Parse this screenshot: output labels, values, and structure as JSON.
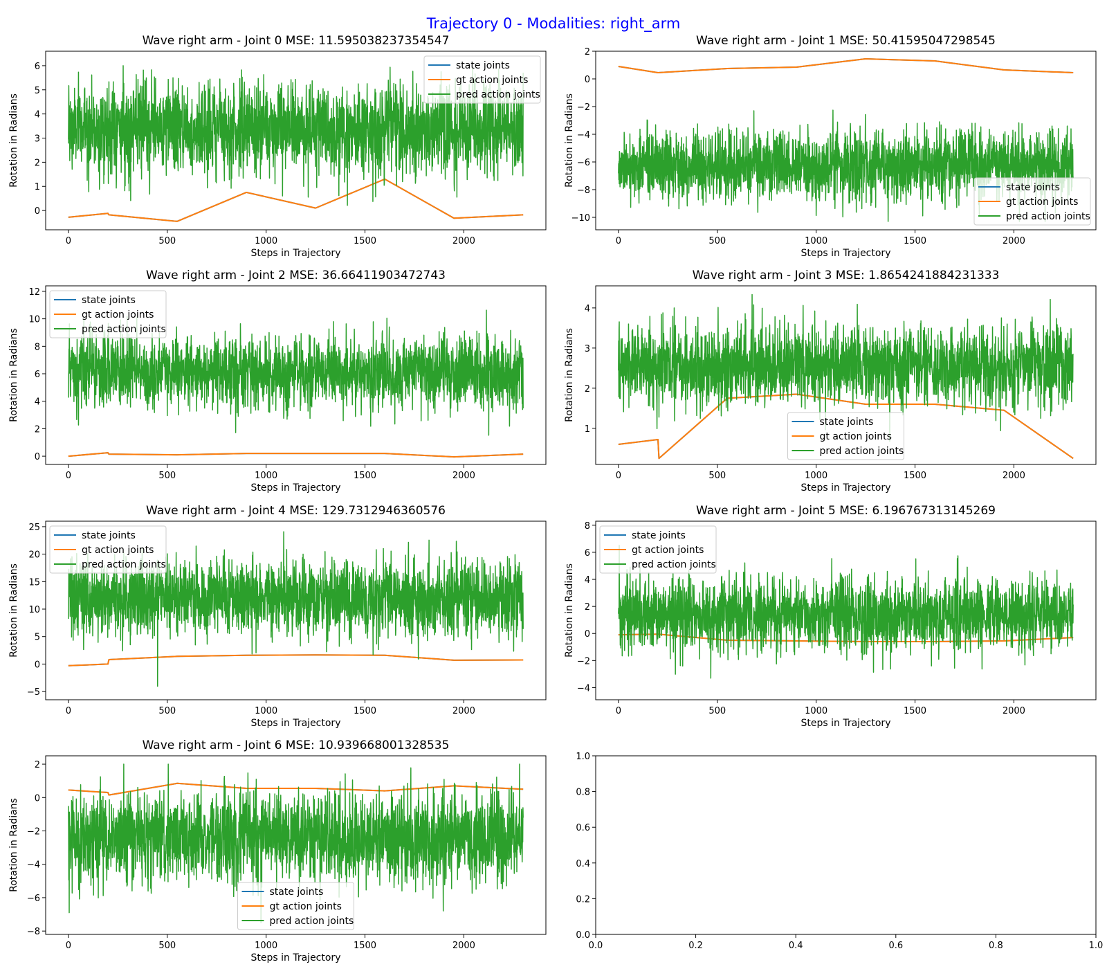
{
  "figure": {
    "suptitle": "Trajectory 0 - Modalities: right_arm",
    "series_names": [
      "state joints",
      "gt action joints",
      "pred action joints"
    ],
    "series_colors": [
      "#1f77b4",
      "#ff7f0e",
      "#2ca02c"
    ],
    "xlabel": "Steps in Trajectory",
    "ylabel": "Rotation in Radians"
  },
  "chart_data": [
    {
      "type": "line",
      "title": "Wave right arm - Joint 0 MSE: 11.595038237354547",
      "xlabel": "Steps in Trajectory",
      "ylabel": "Rotation in Radians",
      "xlim": [
        -115,
        2415
      ],
      "ylim": [
        -0.8,
        6.6
      ],
      "xticks": [
        0,
        500,
        1000,
        1500,
        2000
      ],
      "yticks": [
        0,
        1,
        2,
        3,
        4,
        5,
        6
      ],
      "legend": "upper right",
      "series": [
        {
          "name": "state joints",
          "points": [
            [
              0,
              -0.28
            ],
            [
              200,
              -0.12
            ],
            [
              205,
              -0.18
            ],
            [
              550,
              -0.45
            ],
            [
              900,
              0.75
            ],
            [
              1250,
              0.1
            ],
            [
              1600,
              1.3
            ],
            [
              1950,
              -0.32
            ],
            [
              2300,
              -0.18
            ]
          ]
        },
        {
          "name": "gt action joints",
          "points": [
            [
              0,
              -0.28
            ],
            [
              200,
              -0.12
            ],
            [
              205,
              -0.18
            ],
            [
              550,
              -0.45
            ],
            [
              900,
              0.75
            ],
            [
              1250,
              0.1
            ],
            [
              1600,
              1.3
            ],
            [
              1950,
              -0.32
            ],
            [
              2300,
              -0.18
            ]
          ]
        },
        {
          "name": "pred action joints",
          "noise": {
            "mean": 3.4,
            "sd": 0.95,
            "min": -0.05,
            "max": 6.3,
            "n": 2300
          }
        }
      ]
    },
    {
      "type": "line",
      "title": "Wave right arm - Joint 1 MSE: 50.41595047298545",
      "xlabel": "Steps in Trajectory",
      "ylabel": "Rotation in Radians",
      "xlim": [
        -115,
        2415
      ],
      "ylim": [
        -10.9,
        2.0
      ],
      "xticks": [
        0,
        500,
        1000,
        1500,
        2000
      ],
      "yticks": [
        -10,
        -8,
        -6,
        -4,
        -2,
        0,
        2
      ],
      "legend": "lower right",
      "series": [
        {
          "name": "state joints",
          "points": [
            [
              0,
              0.9
            ],
            [
              200,
              0.45
            ],
            [
              550,
              0.75
            ],
            [
              900,
              0.85
            ],
            [
              1250,
              1.45
            ],
            [
              1600,
              1.3
            ],
            [
              1950,
              0.65
            ],
            [
              2300,
              0.45
            ]
          ]
        },
        {
          "name": "gt action joints",
          "points": [
            [
              0,
              0.9
            ],
            [
              200,
              0.45
            ],
            [
              550,
              0.75
            ],
            [
              900,
              0.85
            ],
            [
              1250,
              1.45
            ],
            [
              1600,
              1.3
            ],
            [
              1950,
              0.65
            ],
            [
              2300,
              0.45
            ]
          ]
        },
        {
          "name": "pred action joints",
          "noise": {
            "mean": -6.3,
            "sd": 1.25,
            "min": -10.3,
            "max": -1.4,
            "n": 2300
          }
        }
      ]
    },
    {
      "type": "line",
      "title": "Wave right arm - Joint 2 MSE: 36.66411903472743",
      "xlabel": "Steps in Trajectory",
      "ylabel": "Rotation in Radians",
      "xlim": [
        -115,
        2415
      ],
      "ylim": [
        -0.6,
        12.4
      ],
      "xticks": [
        0,
        500,
        1000,
        1500,
        2000
      ],
      "yticks": [
        0,
        2,
        4,
        6,
        8,
        10,
        12
      ],
      "legend": "upper left",
      "series": [
        {
          "name": "state joints",
          "points": [
            [
              0,
              0.0
            ],
            [
              200,
              0.25
            ],
            [
              205,
              0.15
            ],
            [
              550,
              0.1
            ],
            [
              900,
              0.2
            ],
            [
              1250,
              0.2
            ],
            [
              1600,
              0.2
            ],
            [
              1950,
              -0.05
            ],
            [
              2300,
              0.15
            ]
          ]
        },
        {
          "name": "gt action joints",
          "points": [
            [
              0,
              0.0
            ],
            [
              200,
              0.25
            ],
            [
              205,
              0.15
            ],
            [
              550,
              0.1
            ],
            [
              900,
              0.2
            ],
            [
              1250,
              0.2
            ],
            [
              1600,
              0.2
            ],
            [
              1950,
              -0.05
            ],
            [
              2300,
              0.15
            ]
          ]
        },
        {
          "name": "pred action joints",
          "noise": {
            "mean": 6.1,
            "sd": 1.35,
            "min": 0.1,
            "max": 11.8,
            "n": 2300
          }
        }
      ]
    },
    {
      "type": "line",
      "title": "Wave right arm - Joint 3 MSE: 1.8654241884231333",
      "xlabel": "Steps in Trajectory",
      "ylabel": "Rotation in Radians",
      "xlim": [
        -115,
        2415
      ],
      "ylim": [
        0.1,
        4.55
      ],
      "xticks": [
        0,
        500,
        1000,
        1500,
        2000
      ],
      "yticks": [
        1,
        2,
        3,
        4
      ],
      "legend": "lower center",
      "series": [
        {
          "name": "state joints",
          "points": [
            [
              0,
              0.6
            ],
            [
              200,
              0.72
            ],
            [
              205,
              0.25
            ],
            [
              550,
              1.75
            ],
            [
              900,
              1.85
            ],
            [
              1250,
              1.6
            ],
            [
              1600,
              1.6
            ],
            [
              1950,
              1.45
            ],
            [
              2300,
              0.25
            ]
          ]
        },
        {
          "name": "gt action joints",
          "points": [
            [
              0,
              0.6
            ],
            [
              200,
              0.72
            ],
            [
              205,
              0.25
            ],
            [
              550,
              1.75
            ],
            [
              900,
              1.85
            ],
            [
              1250,
              1.6
            ],
            [
              1600,
              1.6
            ],
            [
              1950,
              1.45
            ],
            [
              2300,
              0.25
            ]
          ]
        },
        {
          "name": "pred action joints",
          "noise": {
            "mean": 2.55,
            "sd": 0.5,
            "min": 0.3,
            "max": 4.35,
            "n": 2300
          }
        }
      ]
    },
    {
      "type": "line",
      "title": "Wave right arm - Joint 4 MSE: 129.7312946360576",
      "xlabel": "Steps in Trajectory",
      "ylabel": "Rotation in Radians",
      "xlim": [
        -115,
        2415
      ],
      "ylim": [
        -6.5,
        26.0
      ],
      "xticks": [
        0,
        500,
        1000,
        1500,
        2000
      ],
      "yticks": [
        -5,
        0,
        5,
        10,
        15,
        20,
        25
      ],
      "legend": "upper left",
      "series": [
        {
          "name": "state joints",
          "points": [
            [
              0,
              -0.3
            ],
            [
              200,
              0.0
            ],
            [
              205,
              0.8
            ],
            [
              550,
              1.4
            ],
            [
              900,
              1.6
            ],
            [
              1250,
              1.65
            ],
            [
              1600,
              1.6
            ],
            [
              1950,
              0.7
            ],
            [
              2300,
              0.75
            ]
          ]
        },
        {
          "name": "gt action joints",
          "points": [
            [
              0,
              -0.3
            ],
            [
              200,
              0.0
            ],
            [
              205,
              0.8
            ],
            [
              550,
              1.4
            ],
            [
              900,
              1.6
            ],
            [
              1250,
              1.65
            ],
            [
              1600,
              1.6
            ],
            [
              1950,
              0.7
            ],
            [
              2300,
              0.75
            ]
          ]
        },
        {
          "name": "pred action joints",
          "noise": {
            "mean": 12.0,
            "sd": 3.6,
            "min": -5.5,
            "max": 24.7,
            "n": 2300
          }
        }
      ]
    },
    {
      "type": "line",
      "title": "Wave right arm - Joint 5 MSE: 6.196767313145269",
      "xlabel": "Steps in Trajectory",
      "ylabel": "Rotation in Radians",
      "xlim": [
        -115,
        2415
      ],
      "ylim": [
        -4.9,
        8.3
      ],
      "xticks": [
        0,
        500,
        1000,
        1500,
        2000
      ],
      "yticks": [
        -4,
        -2,
        0,
        2,
        4,
        6,
        8
      ],
      "legend": "upper left",
      "series": [
        {
          "name": "state joints",
          "points": [
            [
              0,
              -0.1
            ],
            [
              200,
              -0.05
            ],
            [
              550,
              -0.5
            ],
            [
              900,
              -0.55
            ],
            [
              1250,
              -0.6
            ],
            [
              1600,
              -0.6
            ],
            [
              1950,
              -0.55
            ],
            [
              2300,
              -0.3
            ]
          ]
        },
        {
          "name": "gt action joints",
          "points": [
            [
              0,
              -0.1
            ],
            [
              200,
              -0.05
            ],
            [
              550,
              -0.5
            ],
            [
              900,
              -0.55
            ],
            [
              1250,
              -0.6
            ],
            [
              1600,
              -0.6
            ],
            [
              1950,
              -0.55
            ],
            [
              2300,
              -0.3
            ]
          ]
        },
        {
          "name": "pred action joints",
          "noise": {
            "mean": 1.4,
            "sd": 1.35,
            "min": -4.3,
            "max": 7.7,
            "n": 2300
          }
        }
      ]
    },
    {
      "type": "line",
      "title": "Wave right arm - Joint 6 MSE: 10.939668001328535",
      "xlabel": "Steps in Trajectory",
      "ylabel": "Rotation in Radians",
      "xlim": [
        -115,
        2415
      ],
      "ylim": [
        -8.2,
        2.5
      ],
      "xticks": [
        0,
        500,
        1000,
        1500,
        2000
      ],
      "yticks": [
        -8,
        -6,
        -4,
        -2,
        0,
        2
      ],
      "legend": "lower center",
      "series": [
        {
          "name": "state joints",
          "points": [
            [
              0,
              0.45
            ],
            [
              200,
              0.3
            ],
            [
              205,
              0.15
            ],
            [
              550,
              0.85
            ],
            [
              900,
              0.55
            ],
            [
              1250,
              0.55
            ],
            [
              1600,
              0.4
            ],
            [
              1950,
              0.7
            ],
            [
              2300,
              0.5
            ]
          ]
        },
        {
          "name": "gt action joints",
          "points": [
            [
              0,
              0.45
            ],
            [
              200,
              0.3
            ],
            [
              205,
              0.15
            ],
            [
              550,
              0.85
            ],
            [
              900,
              0.55
            ],
            [
              1250,
              0.55
            ],
            [
              1600,
              0.4
            ],
            [
              1950,
              0.7
            ],
            [
              2300,
              0.5
            ]
          ]
        },
        {
          "name": "pred action joints",
          "noise": {
            "mean": -2.4,
            "sd": 1.35,
            "min": -7.8,
            "max": 2.0,
            "n": 2300
          }
        }
      ]
    },
    {
      "type": "line",
      "title": "",
      "xlabel": "",
      "ylabel": "",
      "xlim": [
        0,
        1
      ],
      "ylim": [
        0,
        1
      ],
      "xticks": [
        0.0,
        0.2,
        0.4,
        0.6,
        0.8,
        1.0
      ],
      "yticks": [
        0.0,
        0.2,
        0.4,
        0.6,
        0.8,
        1.0
      ],
      "tick_labels_x": [
        "0.0",
        "0.2",
        "0.4",
        "0.6",
        "0.8",
        "1.0"
      ],
      "tick_labels_y": [
        "0.0",
        "0.2",
        "0.4",
        "0.6",
        "0.8",
        "1.0"
      ],
      "legend": "none",
      "series": []
    }
  ]
}
